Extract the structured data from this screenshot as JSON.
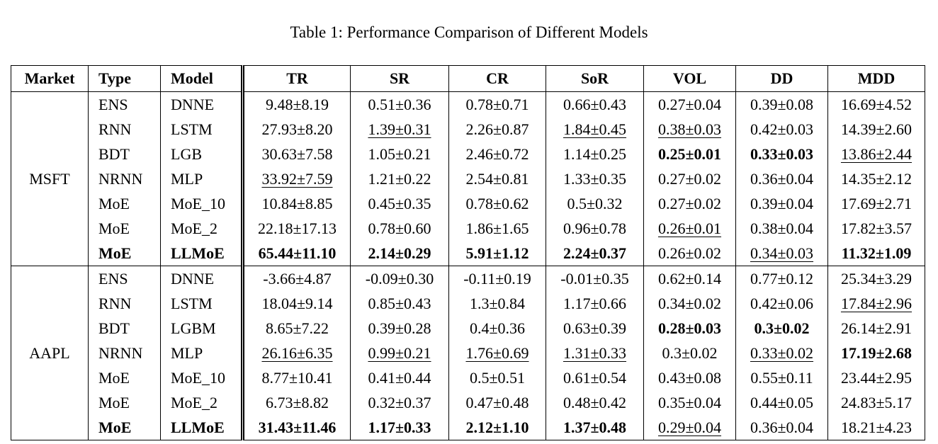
{
  "title": "Table 1: Performance Comparison of Different Models",
  "table": {
    "header": [
      "Market",
      "Type",
      "Model",
      "TR",
      "SR",
      "CR",
      "SoR",
      "VOL",
      "DD",
      "MDD"
    ],
    "groups": [
      {
        "market": "MSFT",
        "rows": [
          [
            "ENS",
            "DNNE",
            "9.48±8.19",
            "0.51±0.36",
            "0.78±0.71",
            "0.66±0.43",
            "0.27±0.04",
            "0.39±0.08",
            "16.69±4.52"
          ],
          [
            "RNN",
            "LSTM",
            "27.93±8.20",
            "1.39±0.31",
            "2.26±0.87",
            "1.84±0.45",
            "0.38±0.03",
            "0.42±0.03",
            "14.39±2.60"
          ],
          [
            "BDT",
            "LGB",
            "30.63±7.58",
            "1.05±0.21",
            "2.46±0.72",
            "1.14±0.25",
            "0.25±0.01",
            "0.33±0.03",
            "13.86±2.44"
          ],
          [
            "NRNN",
            "MLP",
            "33.92±7.59",
            "1.21±0.22",
            "2.54±0.81",
            "1.33±0.35",
            "0.27±0.02",
            "0.36±0.04",
            "14.35±2.12"
          ],
          [
            "MoE",
            "MoE_10",
            "10.84±8.85",
            "0.45±0.35",
            "0.78±0.62",
            "0.5±0.32",
            "0.27±0.02",
            "0.39±0.04",
            "17.69±2.71"
          ],
          [
            "MoE",
            "MoE_2",
            "22.18±17.13",
            "0.78±0.60",
            "1.86±1.65",
            "0.96±0.78",
            "0.26±0.01",
            "0.38±0.04",
            "17.82±3.57"
          ],
          [
            "MoE",
            "LLMoE",
            "65.44±11.10",
            "2.14±0.29",
            "5.91±1.12",
            "2.24±0.37",
            "0.26±0.02",
            "0.34±0.03",
            "11.32±1.09"
          ]
        ]
      },
      {
        "market": "AAPL",
        "rows": [
          [
            "ENS",
            "DNNE",
            "-3.66±4.87",
            "-0.09±0.30",
            "-0.11±0.19",
            "-0.01±0.35",
            "0.62±0.14",
            "0.77±0.12",
            "25.34±3.29"
          ],
          [
            "RNN",
            "LSTM",
            "18.04±9.14",
            "0.85±0.43",
            "1.3±0.84",
            "1.17±0.66",
            "0.34±0.02",
            "0.42±0.06",
            "17.84±2.96"
          ],
          [
            "BDT",
            "LGBM",
            "8.65±7.22",
            "0.39±0.28",
            "0.4±0.36",
            "0.63±0.39",
            "0.28±0.03",
            "0.3±0.02",
            "26.14±2.91"
          ],
          [
            "NRNN",
            "MLP",
            "26.16±6.35",
            "0.99±0.21",
            "1.76±0.69",
            "1.31±0.33",
            "0.3±0.02",
            "0.33±0.02",
            "17.19±2.68"
          ],
          [
            "MoE",
            "MoE_10",
            "8.77±10.41",
            "0.41±0.44",
            "0.5±0.51",
            "0.61±0.54",
            "0.43±0.08",
            "0.55±0.11",
            "23.44±2.95"
          ],
          [
            "MoE",
            "MoE_2",
            "6.73±8.82",
            "0.32±0.37",
            "0.47±0.48",
            "0.48±0.42",
            "0.35±0.04",
            "0.44±0.05",
            "24.83±5.17"
          ],
          [
            "MoE",
            "LLMoE",
            "31.43±11.46",
            "1.17±0.33",
            "2.12±1.10",
            "1.37±0.48",
            "0.29±0.04",
            "0.36±0.04",
            "18.21±4.23"
          ]
        ]
      }
    ]
  }
}
